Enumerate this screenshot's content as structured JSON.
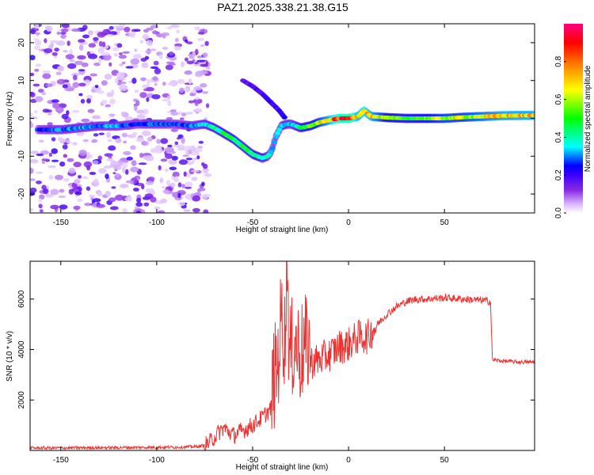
{
  "title": "PAZ1.2025.338.21.38.G15",
  "chart_data": [
    {
      "type": "heatmap",
      "xlabel": "Height of straight line (km)",
      "ylabel": "Frequency (Hz)",
      "xlim": [
        -166,
        97
      ],
      "ylim": [
        -25,
        25
      ],
      "x_ticks": [
        -150,
        -100,
        -50,
        0,
        50
      ],
      "y_ticks": [
        -20,
        -10,
        0,
        10,
        20
      ],
      "colorbar": {
        "label": "Normalized spectral amplitude",
        "range": [
          0,
          1
        ],
        "ticks": [
          "0.0",
          "0.2",
          "0.4",
          "0.6",
          "0.8"
        ],
        "colors": [
          "#ffffff",
          "#d6b0ff",
          "#8a2be2",
          "#3a00ff",
          "#0000ff",
          "#00ffff",
          "#00ff00",
          "#ffff00",
          "#ff8000",
          "#ff0000",
          "#ff0080"
        ]
      },
      "ridge_line": {
        "x": [
          -162,
          -150,
          -140,
          -130,
          -120,
          -110,
          -100,
          -90,
          -82,
          -75,
          -70,
          -65,
          -60,
          -55,
          -50,
          -45,
          -42,
          -40,
          -38,
          -35,
          -32,
          -30,
          -25,
          -20,
          -15,
          -10,
          -5,
          0,
          5,
          8,
          12,
          20,
          30,
          40,
          50,
          60,
          70,
          80,
          97
        ],
        "y": [
          -3,
          -3,
          -2.5,
          -2,
          -2,
          -1.5,
          -1.5,
          -1.5,
          -2,
          -1.5,
          -2.5,
          -4,
          -5.5,
          -7.5,
          -9.5,
          -10.5,
          -10,
          -8.5,
          -5,
          -2,
          -1.5,
          -1.5,
          -2.5,
          -2,
          -1,
          -0.5,
          0,
          0,
          0.5,
          2,
          0.5,
          0.2,
          0,
          0,
          0,
          0.3,
          0.5,
          0.7,
          0.8
        ],
        "amplitude": [
          0.25,
          0.3,
          0.3,
          0.3,
          0.3,
          0.25,
          0.3,
          0.25,
          0.3,
          0.35,
          0.4,
          0.45,
          0.45,
          0.45,
          0.45,
          0.4,
          0.35,
          0.3,
          0.3,
          0.35,
          0.35,
          0.3,
          0.45,
          0.5,
          0.6,
          0.7,
          0.85,
          0.9,
          0.7,
          0.75,
          0.7,
          0.55,
          0.5,
          0.55,
          0.6,
          0.6,
          0.65,
          0.7,
          0.7
        ]
      },
      "branch_line": {
        "x": [
          -55,
          -50,
          -45,
          -40,
          -36,
          -33
        ],
        "y": [
          10,
          8.5,
          6.5,
          4,
          2,
          0
        ],
        "amplitude": [
          0.15,
          0.18,
          0.2,
          0.2,
          0.2,
          0.25
        ]
      },
      "noise_region_x": [
        -166,
        -73
      ]
    },
    {
      "type": "line",
      "xlabel": "Height of straight line (km)",
      "ylabel": "SNR (10 * v/v)",
      "xlim": [
        -166,
        97
      ],
      "ylim": [
        0,
        7500
      ],
      "x_ticks": [
        -150,
        -100,
        -50,
        0,
        50
      ],
      "y_ticks": [
        2000,
        4000,
        6000
      ],
      "series": [
        {
          "color": "#ee3333",
          "x": [
            -166,
            -150,
            -130,
            -110,
            -90,
            -80,
            -75,
            -72,
            -68,
            -65,
            -60,
            -55,
            -50,
            -45,
            -40,
            -37,
            -35,
            -33,
            -32,
            -31,
            -30,
            -28,
            -25,
            -22,
            -20,
            -15,
            -10,
            -5,
            0,
            5,
            10,
            15,
            20,
            25,
            30,
            35,
            40,
            50,
            60,
            70,
            74,
            75,
            80,
            90,
            97
          ],
          "y": [
            100,
            100,
            110,
            120,
            130,
            150,
            200,
            350,
            700,
            900,
            600,
            800,
            1000,
            1300,
            1700,
            2500,
            4500,
            3500,
            7400,
            2800,
            3000,
            3500,
            3000,
            3300,
            3500,
            3600,
            3800,
            4100,
            4200,
            4500,
            4500,
            5000,
            5400,
            5700,
            5900,
            6000,
            6000,
            6050,
            6000,
            5950,
            5900,
            3600,
            3550,
            3500,
            3500
          ]
        }
      ]
    }
  ]
}
